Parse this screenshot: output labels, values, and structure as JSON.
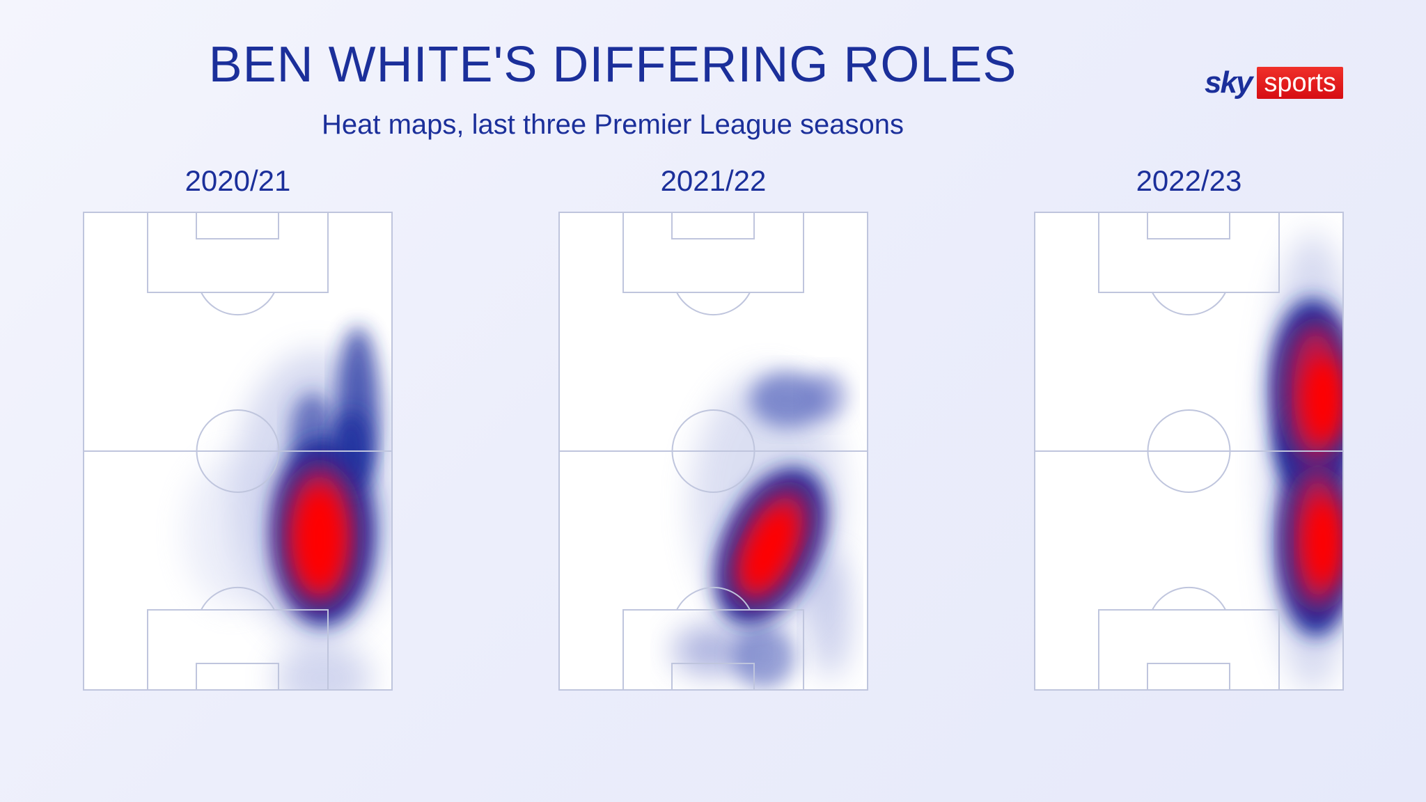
{
  "header": {
    "title": "BEN WHITE'S DIFFERING ROLES",
    "subtitle": "Heat maps, last three Premier League seasons"
  },
  "logo": {
    "sky": "sky",
    "sports": "sports"
  },
  "seasons": [
    {
      "label": "2020/21"
    },
    {
      "label": "2021/22"
    },
    {
      "label": "2022/23"
    }
  ],
  "colors": {
    "text": "#1b2f9a",
    "pitch_lines": "#bfc5dd",
    "heat_low": "#1a2f9e",
    "heat_high": "#ff0000",
    "logo_red": "#e0161b"
  }
}
